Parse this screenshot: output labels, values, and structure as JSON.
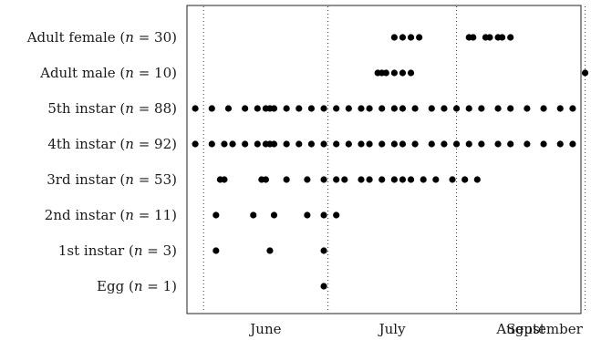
{
  "chart_data": {
    "type": "scatter",
    "title": "",
    "xlabel": "",
    "ylabel": "",
    "x_categories": [
      "June",
      "July",
      "August",
      "September"
    ],
    "stages": [
      {
        "label": "Adult female",
        "n": 30
      },
      {
        "label": "Adult male",
        "n": 10
      },
      {
        "label": "5th instar",
        "n": 88
      },
      {
        "label": "4th instar",
        "n": 92
      },
      {
        "label": "3rd instar",
        "n": 53
      },
      {
        "label": "2nd instar",
        "n": 11
      },
      {
        "label": "1st instar",
        "n": 3
      },
      {
        "label": "Egg",
        "n": 1
      }
    ],
    "x_unit_note": "x = days since 1 June",
    "points": [
      {
        "stage": "Adult female",
        "x": [
          46,
          48,
          50,
          52,
          64,
          65,
          68,
          69,
          71,
          72,
          74
        ]
      },
      {
        "stage": "Adult male",
        "x": [
          42,
          43,
          44,
          46,
          48,
          50,
          92
        ]
      },
      {
        "stage": "5th instar",
        "x": [
          -2,
          2,
          6,
          10,
          13,
          15,
          16,
          17,
          20,
          23,
          26,
          29,
          32,
          35,
          38,
          40,
          43,
          46,
          48,
          51,
          55,
          58,
          61,
          64,
          67,
          71,
          74,
          78,
          82,
          86,
          89
        ]
      },
      {
        "stage": "4th instar",
        "x": [
          -2,
          2,
          5,
          7,
          10,
          13,
          15,
          16,
          17,
          20,
          23,
          26,
          29,
          32,
          35,
          38,
          40,
          43,
          46,
          48,
          51,
          55,
          58,
          61,
          64,
          67,
          71,
          74,
          78,
          82,
          86,
          89
        ]
      },
      {
        "stage": "3rd instar",
        "x": [
          4,
          5,
          14,
          15,
          20,
          25,
          29,
          32,
          34,
          38,
          40,
          43,
          46,
          48,
          50,
          53,
          56,
          60,
          63,
          66
        ]
      },
      {
        "stage": "2nd instar",
        "x": [
          3,
          12,
          17,
          25,
          29,
          32
        ]
      },
      {
        "stage": "1st instar",
        "x": [
          3,
          16,
          29
        ]
      },
      {
        "stage": "Egg",
        "x": [
          29
        ]
      }
    ],
    "xlim": [
      -4,
      91
    ],
    "month_boundaries": [
      0,
      30,
      61,
      92
    ],
    "grid": "monthly dotted dividers",
    "legend": "none"
  }
}
